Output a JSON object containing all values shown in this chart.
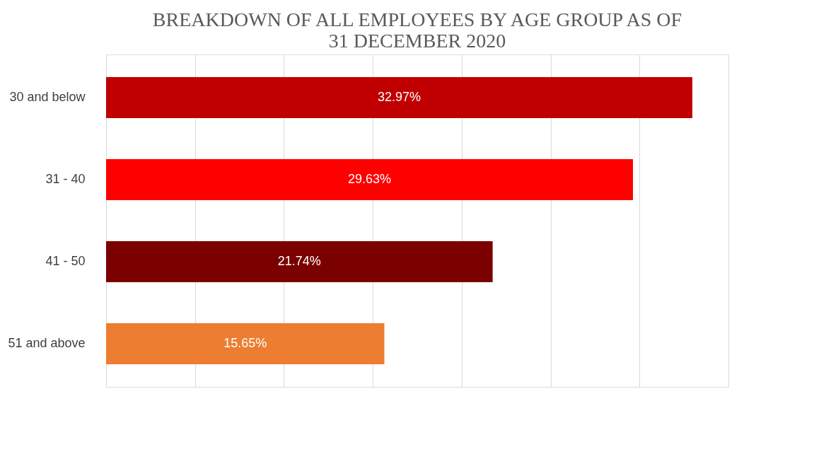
{
  "chart_data": {
    "type": "bar",
    "orientation": "horizontal",
    "title": "BREAKDOWN OF ALL EMPLOYEES BY AGE GROUP AS OF 31 DECEMBER 2020",
    "categories": [
      "30 and below",
      "31 - 40",
      "41 - 50",
      "51 and above"
    ],
    "values": [
      32.97,
      29.63,
      21.74,
      15.65
    ],
    "colors": [
      "#c00000",
      "#ff0000",
      "#7b0000",
      "#ed7d31"
    ],
    "value_labels": [
      "32.97%",
      "29.63%",
      "21.74%",
      "15.65%"
    ],
    "xlim": [
      0,
      35
    ],
    "xticks": [
      {
        "value": 0,
        "label": null
      },
      {
        "value": 5,
        "label": null
      },
      {
        "value": 10,
        "label": null
      },
      {
        "value": 15,
        "label": null
      },
      {
        "value": 20,
        "label": null
      },
      {
        "value": 25,
        "label": null
      },
      {
        "value": 30,
        "label": null
      },
      {
        "value": 35,
        "label": null
      }
    ],
    "grid": "x",
    "tick_labels": "y"
  }
}
